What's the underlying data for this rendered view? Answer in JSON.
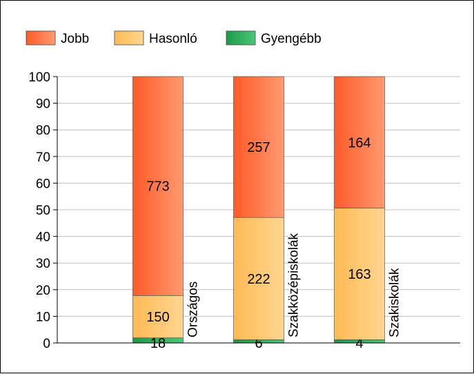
{
  "chart_data": {
    "type": "bar",
    "stacked": true,
    "normalized_percent": true,
    "title": "",
    "xlabel": "",
    "ylabel": "",
    "ylim": [
      0,
      100
    ],
    "yticks": [
      0,
      10,
      20,
      30,
      40,
      50,
      60,
      70,
      80,
      90,
      100
    ],
    "grid": true,
    "legend_position": "top-left",
    "categories": [
      "Országos",
      "Szakközépiskolák",
      "Szakiskolák"
    ],
    "series": [
      {
        "name": "Gyengébb",
        "color": "#22a050",
        "counts": [
          18,
          6,
          4
        ],
        "percent": [
          1.9,
          1.2,
          1.2
        ]
      },
      {
        "name": "Hasonló",
        "color": "#ffc066",
        "counts": [
          150,
          222,
          163
        ],
        "percent": [
          15.9,
          45.9,
          49.4
        ]
      },
      {
        "name": "Jobb",
        "color": "#ff6a3a",
        "counts": [
          773,
          257,
          164
        ],
        "percent": [
          82.2,
          52.9,
          49.4
        ]
      }
    ],
    "legend_order": [
      "Jobb",
      "Hasonló",
      "Gyengébb"
    ]
  }
}
